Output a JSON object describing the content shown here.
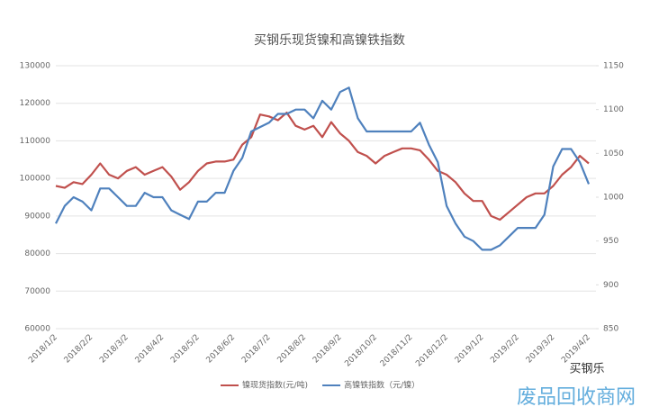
{
  "chart_data": {
    "type": "line",
    "title": "买钢乐现货镍和高镍铁指数",
    "categories": [
      "2018/1/2",
      null,
      null,
      null,
      "2018/2/2",
      null,
      null,
      null,
      "2018/3/2",
      null,
      null,
      null,
      "2018/4/2",
      null,
      null,
      null,
      "2018/5/2",
      null,
      null,
      null,
      "2018/6/2",
      null,
      null,
      null,
      "2018/7/2",
      null,
      null,
      null,
      "2018/8/2",
      null,
      null,
      null,
      "2018/9/2",
      null,
      null,
      null,
      "2018/10/2",
      null,
      null,
      null,
      "2018/11/2",
      null,
      null,
      null,
      "2018/12/2",
      null,
      null,
      null,
      "2019/1/2",
      null,
      null,
      null,
      "2019/2/2",
      null,
      null,
      null,
      "2019/3/2",
      null,
      null,
      null,
      "2019/4/2"
    ],
    "series": [
      {
        "name": "镍现货指数(元/吨)",
        "color": "#c0504d",
        "values": [
          98000,
          97500,
          99000,
          98500,
          101000,
          104000,
          101000,
          100000,
          102000,
          103000,
          101000,
          102000,
          103000,
          100500,
          97000,
          99000,
          102000,
          104000,
          104500,
          104500,
          105000,
          109000,
          111000,
          117000,
          116500,
          115500,
          117500,
          114000,
          113000,
          114000,
          111000,
          115000,
          112000,
          110000,
          107000,
          106000,
          104000,
          106000,
          107000,
          108000,
          108000,
          107500,
          105000,
          102000,
          101000,
          99000,
          96000,
          94000,
          94000,
          90000,
          89000,
          91000,
          93000,
          95000,
          96000,
          96000,
          98000,
          101000,
          103000,
          106000,
          104000
        ]
      },
      {
        "name": "高镍铁指数（元/镍）",
        "color": "#4f81bd",
        "axis": "y2",
        "values": [
          970,
          990,
          1000,
          995,
          985,
          1010,
          1010,
          1000,
          990,
          990,
          1005,
          1000,
          1000,
          985,
          980,
          975,
          995,
          995,
          1005,
          1005,
          1030,
          1045,
          1075,
          1080,
          1085,
          1095,
          1095,
          1100,
          1100,
          1090,
          1110,
          1100,
          1120,
          1125,
          1090,
          1075,
          1075,
          1075,
          1075,
          1075,
          1075,
          1085,
          1060,
          1040,
          990,
          970,
          955,
          950,
          940,
          940,
          945,
          955,
          965,
          965,
          965,
          980,
          1035,
          1055,
          1055,
          1040,
          1015
        ]
      }
    ],
    "ylim": [
      60000,
      130000
    ],
    "yticks": [
      60000,
      70000,
      80000,
      90000,
      100000,
      110000,
      120000,
      130000
    ],
    "y2lim": [
      850,
      1150
    ],
    "y2ticks": [
      850,
      900,
      950,
      1000,
      1050,
      1100,
      1150
    ],
    "legend": "bottom",
    "annotations": [
      "买钢乐",
      "废品回收商网"
    ]
  }
}
